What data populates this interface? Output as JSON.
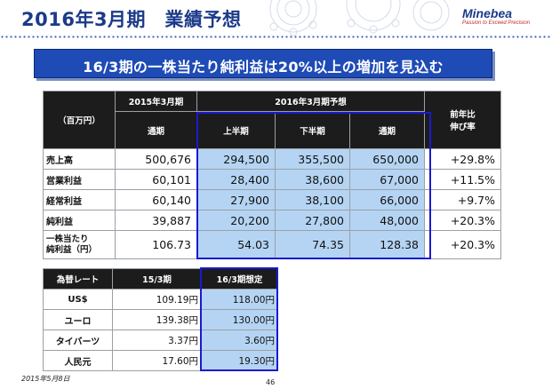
{
  "header": {
    "title": "2016年3月期　業績予想",
    "logo_name": "Minebea",
    "logo_tagline": "Passion to Exceed Precision"
  },
  "banner": {
    "text": "16/3期の一株当たり純利益は20%以上の増加を見込む"
  },
  "main_table": {
    "unit_label": "（百万円）",
    "group_headers": [
      "2015年3月期",
      "2016年3月期予想"
    ],
    "sub_headers": [
      "通期",
      "上半期",
      "下半期",
      "通期"
    ],
    "change_header_line1": "前年比",
    "change_header_line2": "伸び率",
    "rows": [
      {
        "label": "売上高",
        "fy2015": "500,676",
        "h1": "294,500",
        "h2": "355,500",
        "fy2016": "650,000",
        "change": "+29.8%"
      },
      {
        "label": "営業利益",
        "fy2015": "60,101",
        "h1": "28,400",
        "h2": "38,600",
        "fy2016": "67,000",
        "change": "+11.5%"
      },
      {
        "label": "経常利益",
        "fy2015": "60,140",
        "h1": "27,900",
        "h2": "38,100",
        "fy2016": "66,000",
        "change": "+9.7%"
      },
      {
        "label": "純利益",
        "fy2015": "39,887",
        "h1": "20,200",
        "h2": "27,800",
        "fy2016": "48,000",
        "change": "+20.3%"
      },
      {
        "label_line1": "一株当たり",
        "label_line2": "純利益（円）",
        "fy2015": "106.73",
        "h1": "54.03",
        "h2": "74.35",
        "fy2016": "128.38",
        "change": "+20.3%"
      }
    ]
  },
  "rates_table": {
    "headers": [
      "為替レート",
      "15/3期",
      "16/3期想定"
    ],
    "rows": [
      {
        "currency": "US$",
        "fy15": "109.19円",
        "fy16": "118.00円"
      },
      {
        "currency": "ユーロ",
        "fy15": "139.38円",
        "fy16": "130.00円"
      },
      {
        "currency": "タイバーツ",
        "fy15": "3.37円",
        "fy16": "3.60円"
      },
      {
        "currency": "人民元",
        "fy15": "17.60円",
        "fy16": "19.30円"
      }
    ]
  },
  "footer": {
    "date": "2015年5月8日",
    "page_number": "46"
  }
}
